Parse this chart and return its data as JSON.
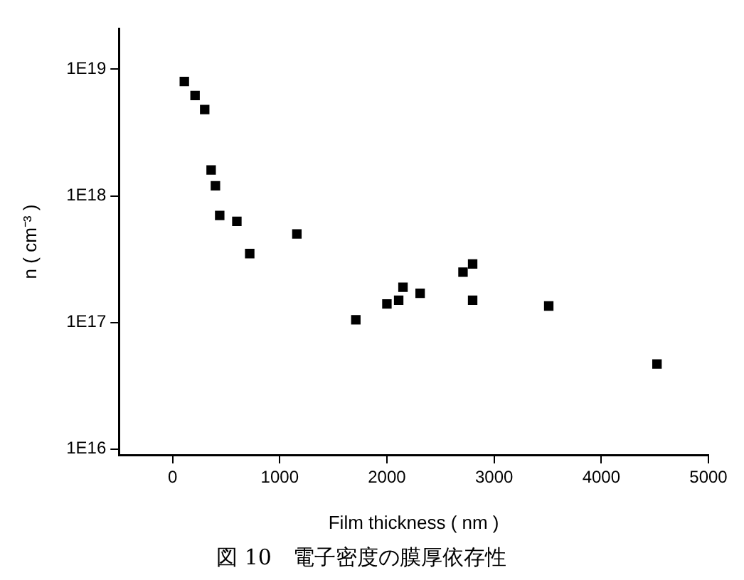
{
  "chart_data": {
    "type": "scatter",
    "title": "図 10　電子密度の膜厚依存性",
    "xlabel": "Film thickness ( nm )",
    "ylabel": "n ( cm⁻³ )",
    "x": [
      110,
      210,
      300,
      360,
      400,
      440,
      600,
      720,
      1160,
      1710,
      2000,
      2110,
      2150,
      2310,
      2710,
      2800,
      2800,
      3510,
      4520
    ],
    "series": [
      {
        "color": "#000000",
        "values": [
          8e+18,
          6.2e+18,
          4.8e+18,
          1.6e+18,
          1.2e+18,
          7e+17,
          6.3e+17,
          3.5e+17,
          5e+17,
          1.05e+17,
          1.4e+17,
          1.5e+17,
          1.9e+17,
          1.7e+17,
          2.5e+17,
          2.9e+17,
          1.5e+17,
          1.35e+17,
          4.7e+16
        ]
      }
    ],
    "xlim": [
      -500,
      5000
    ],
    "xticks": [
      0,
      1000,
      2000,
      3000,
      4000,
      5000
    ],
    "ylim": [
      9000000000000000.0,
      2.1e+19
    ],
    "yticks": [
      {
        "value": 1e+16,
        "label": "1E16"
      },
      {
        "value": 1e+17,
        "label": "1E17"
      },
      {
        "value": 1e+18,
        "label": "1E18"
      },
      {
        "value": 1e+19,
        "label": "1E19"
      }
    ],
    "log": "y",
    "grid": false,
    "legend": false,
    "marker": "square"
  }
}
